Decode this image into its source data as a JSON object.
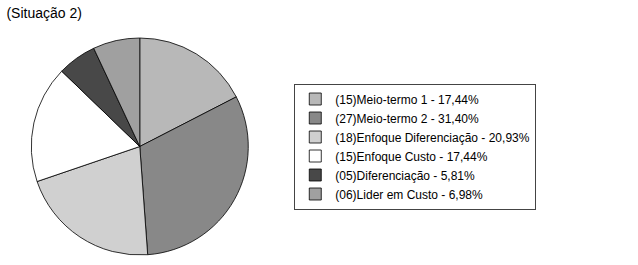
{
  "chart_data": {
    "type": "pie",
    "title": "(Situação 2)",
    "categories": [
      "(15)Meio-termo 1 - 17,44%",
      "(27)Meio-termo 2 - 31,40%",
      "(18)Enfoque Diferenciação - 20,93%",
      "(15)Enfoque Custo - 17,44%",
      "(05)Diferenciação - 5,81%",
      "(06)Lider em Custo - 6,98%"
    ],
    "values": [
      17.44,
      31.4,
      20.93,
      17.44,
      5.81,
      6.98
    ],
    "colors": [
      "#b8b8b8",
      "#888888",
      "#d0d0d0",
      "#ffffff",
      "#484848",
      "#a0a0a0"
    ],
    "legend": "right"
  }
}
